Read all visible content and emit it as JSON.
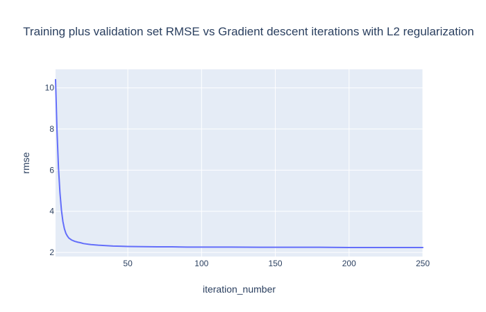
{
  "chart_data": {
    "type": "line",
    "title": "Training plus validation set RMSE vs Gradient descent iterations with L2 regularization",
    "xlabel": "iteration_number",
    "ylabel": "rmse",
    "xlim": [
      1,
      250
    ],
    "ylim": [
      1.8,
      10.9
    ],
    "x_ticks": [
      50,
      100,
      150,
      200,
      250
    ],
    "y_ticks": [
      2,
      4,
      6,
      8,
      10
    ],
    "grid": true,
    "colors": {
      "plot_bg": "#e5ecf6",
      "grid": "#ffffff",
      "line": "#636efa",
      "text": "#2a3f5f"
    },
    "series": [
      {
        "x": [
          1,
          2,
          3,
          4,
          5,
          6,
          7,
          8,
          9,
          10,
          12,
          14,
          16,
          18,
          20,
          25,
          30,
          35,
          40,
          45,
          50,
          60,
          70,
          80,
          90,
          100,
          120,
          140,
          160,
          180,
          200,
          220,
          240,
          250
        ],
        "values": [
          10.4,
          7.9,
          6.1,
          4.9,
          4.05,
          3.5,
          3.15,
          2.93,
          2.8,
          2.7,
          2.6,
          2.54,
          2.5,
          2.47,
          2.43,
          2.38,
          2.35,
          2.33,
          2.31,
          2.3,
          2.29,
          2.28,
          2.27,
          2.27,
          2.26,
          2.26,
          2.26,
          2.25,
          2.25,
          2.25,
          2.24,
          2.24,
          2.24,
          2.24
        ]
      }
    ]
  }
}
